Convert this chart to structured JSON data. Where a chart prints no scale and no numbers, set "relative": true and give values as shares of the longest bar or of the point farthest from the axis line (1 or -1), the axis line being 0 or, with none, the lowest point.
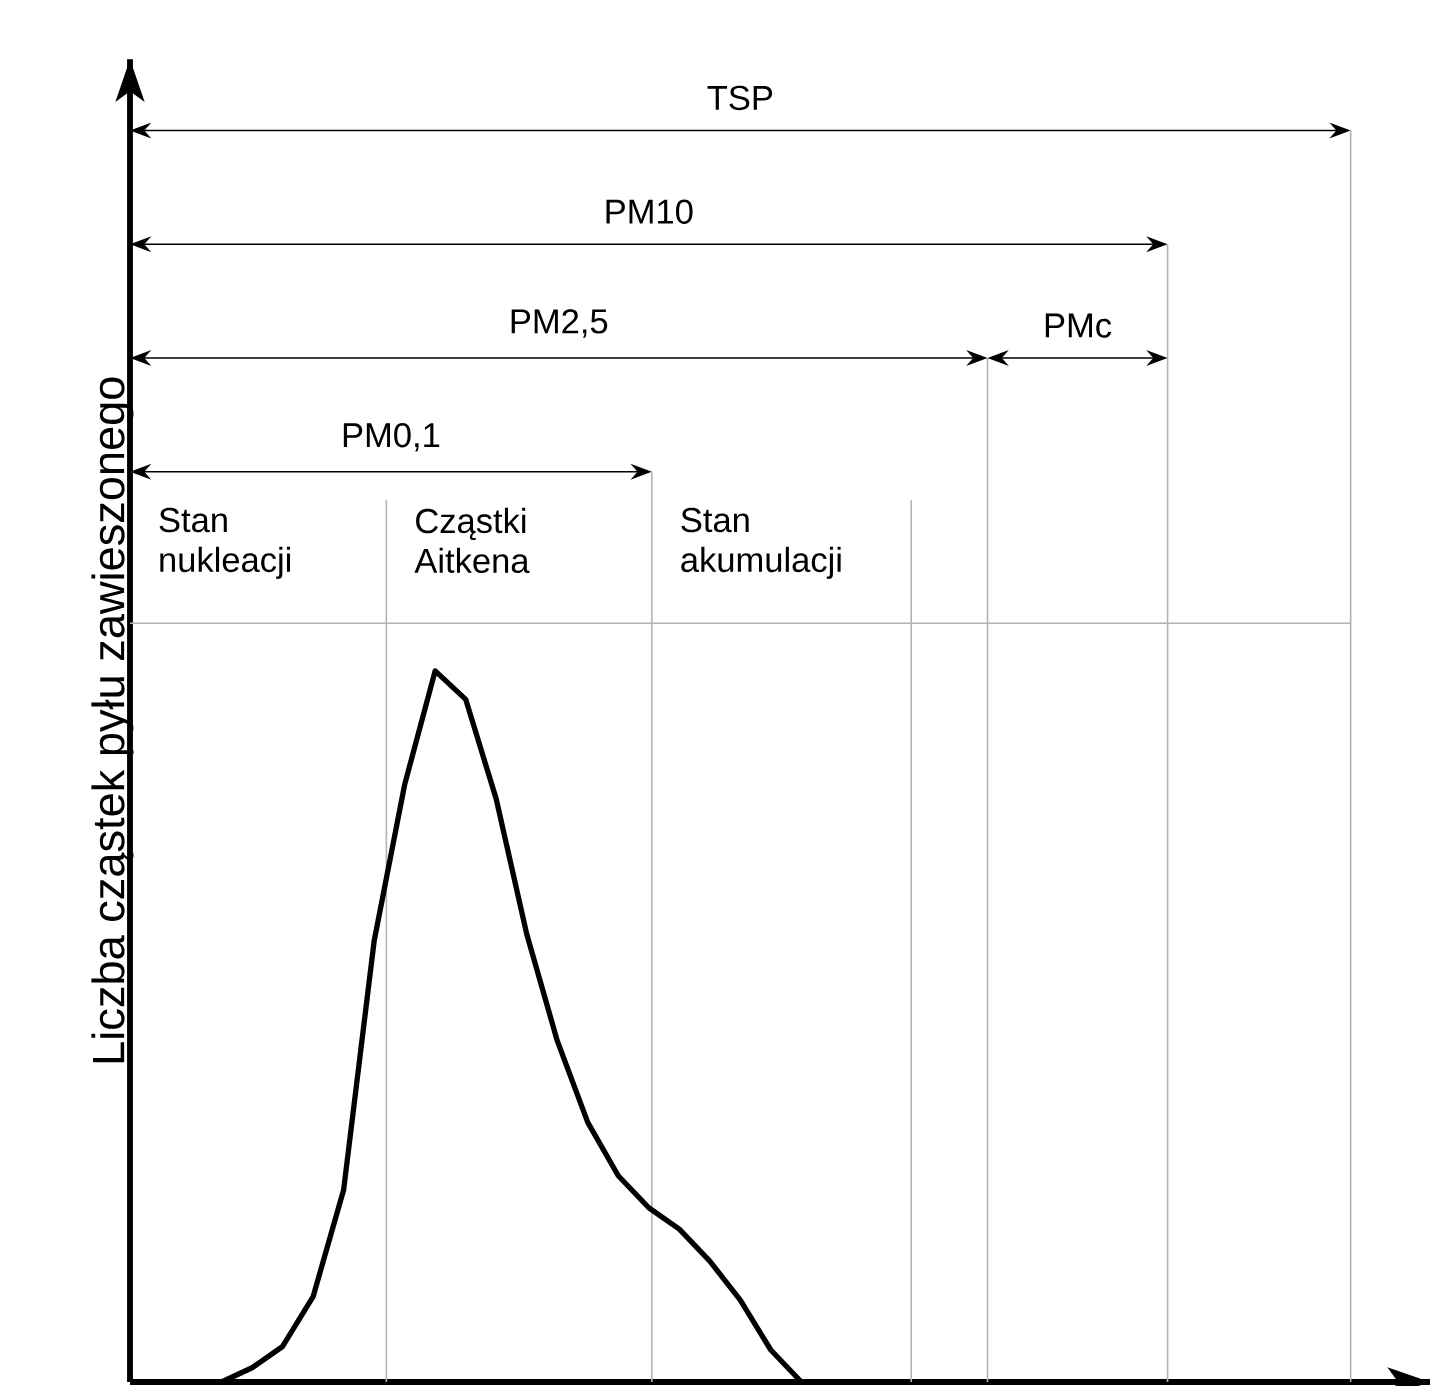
{
  "chart_data": {
    "type": "line",
    "relative": true,
    "ylabel": "Liczba cząstek pyłu zawieszonego",
    "categories": [
      null,
      null,
      null,
      null,
      null,
      null,
      null,
      null,
      null,
      null,
      null,
      null,
      null,
      null,
      null,
      null,
      null,
      null,
      null,
      null,
      null,
      null,
      null,
      null,
      null,
      null,
      null,
      null,
      null,
      null,
      null,
      null,
      null,
      null,
      null,
      null,
      null,
      null,
      null,
      null,
      null
    ],
    "values": [
      null,
      null,
      null,
      0,
      0.02,
      0.05,
      0.12,
      0.27,
      0.62,
      0.84,
      1,
      0.96,
      0.82,
      0.63,
      0.48,
      0.365,
      0.29,
      0.245,
      0.215,
      0.17,
      0.115,
      0.045,
      0,
      null,
      null,
      null,
      null,
      null,
      null,
      null,
      null,
      null,
      null,
      null,
      null,
      null,
      null,
      null,
      null,
      null,
      null
    ],
    "color": "#000000",
    "tick_labels": false,
    "marker": "none",
    "line_style": "solid",
    "grid": true,
    "annotations": [
      "TSP",
      "PM10",
      "PM2,5",
      "PMc",
      "PM0,1",
      "Stan nukleacji",
      "Cząstki Aitkena",
      "Stan akumulacji"
    ]
  }
}
